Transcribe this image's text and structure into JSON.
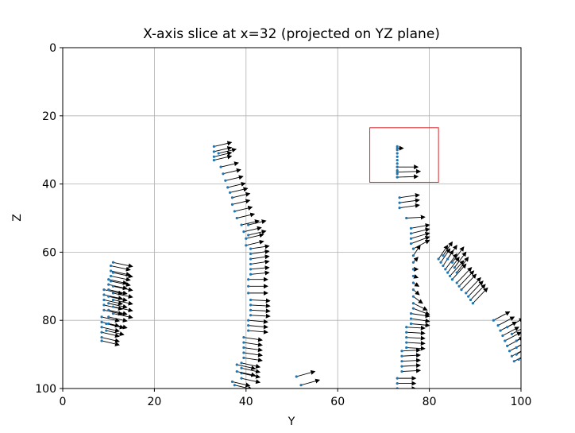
{
  "chart_data": {
    "type": "quiver",
    "title": "X-axis slice at x=32 (projected on YZ plane)",
    "xlabel": "Y",
    "ylabel": "Z",
    "xlim": [
      0,
      100
    ],
    "ylim": [
      100,
      0
    ],
    "y_axis_inverted": true,
    "xticks": [
      0,
      20,
      40,
      60,
      80,
      100
    ],
    "yticks": [
      0,
      20,
      40,
      60,
      80,
      100
    ],
    "grid": true,
    "point_color": "#1f77b4",
    "arrow_color": "#000000",
    "highlight_box": {
      "y_range": [
        67,
        82
      ],
      "z_range": [
        23.5,
        39.5
      ],
      "color": "#d62728"
    },
    "series": [
      {
        "name": "",
        "points": [
          [
            8.5,
            79,
            3.8,
            1.2
          ],
          [
            8.5,
            80.5,
            3.8,
            1.2
          ],
          [
            8.5,
            82,
            3.8,
            1.2
          ],
          [
            8.5,
            83.5,
            3.8,
            1.2
          ],
          [
            8.5,
            85,
            3.8,
            1.2
          ],
          [
            8.5,
            86,
            3.8,
            1.2
          ],
          [
            9.5,
            81,
            3.8,
            1.2
          ],
          [
            9.5,
            83,
            3.8,
            1.2
          ],
          [
            9,
            71,
            4,
            1.2
          ],
          [
            9,
            72.5,
            4,
            1.2
          ],
          [
            9,
            74,
            4,
            1.2
          ],
          [
            9,
            75.5,
            4,
            1.2
          ],
          [
            9,
            77,
            4,
            1.2
          ],
          [
            10,
            71,
            4,
            1.2
          ],
          [
            10,
            73,
            4,
            1.2
          ],
          [
            10,
            75,
            4,
            1.2
          ],
          [
            10,
            77,
            4,
            1.2
          ],
          [
            10,
            79,
            4,
            1.2
          ],
          [
            10,
            81,
            4,
            1.2
          ],
          [
            10,
            68,
            4,
            1.2
          ],
          [
            10,
            69.5,
            4,
            1.2
          ],
          [
            10.5,
            64,
            4.2,
            1.2
          ],
          [
            10.5,
            65.5,
            4.2,
            1.2
          ],
          [
            10.5,
            67,
            4.2,
            1.2
          ],
          [
            10.5,
            68.5,
            4.2,
            1.2
          ],
          [
            11,
            63,
            4.2,
            1.2
          ],
          [
            11,
            66,
            4.2,
            1.2
          ],
          [
            11,
            70,
            4.2,
            1.2
          ],
          [
            11,
            72,
            4.2,
            1.2
          ],
          [
            11,
            74,
            4.2,
            1.2
          ],
          [
            11,
            76,
            4.2,
            1.2
          ],
          [
            11,
            78,
            4.2,
            1.2
          ],
          [
            33,
            29,
            3.8,
            -1.2
          ],
          [
            33,
            30.5,
            3.8,
            -1.2
          ],
          [
            33,
            32,
            3.8,
            -1.2
          ],
          [
            33,
            33,
            3.8,
            -1.2
          ],
          [
            34,
            31,
            3.8,
            -1.2
          ],
          [
            34.5,
            35,
            3.8,
            -1.2
          ],
          [
            35,
            37,
            3.8,
            -1.2
          ],
          [
            35.5,
            39,
            3.8,
            -1.2
          ],
          [
            36,
            41,
            3.8,
            -1.2
          ],
          [
            36.5,
            42.5,
            3.8,
            -1.2
          ],
          [
            37,
            44,
            3.8,
            -1.2
          ],
          [
            37,
            46,
            3.8,
            -1.2
          ],
          [
            37.5,
            48,
            3.8,
            -1.2
          ],
          [
            38,
            50,
            3.8,
            -1.2
          ],
          [
            39,
            52,
            3.8,
            -1.2
          ],
          [
            39.5,
            54,
            3.8,
            -1.2
          ],
          [
            40,
            56,
            3.8,
            -1.2
          ],
          [
            40,
            58,
            3.8,
            -1.2
          ],
          [
            40.5,
            52,
            3.8,
            -1.2
          ],
          [
            40.5,
            55,
            3.8,
            -1.2
          ],
          [
            41,
            59,
            4,
            -0.8
          ],
          [
            41,
            60.5,
            4,
            -0.8
          ],
          [
            41,
            62,
            4,
            -0.8
          ],
          [
            41,
            63.5,
            4,
            -0.8
          ],
          [
            41,
            65,
            4,
            -0.5
          ],
          [
            41,
            66.5,
            4,
            -0.5
          ],
          [
            40.5,
            68,
            4.2,
            0
          ],
          [
            40.5,
            70,
            4.2,
            0
          ],
          [
            40.5,
            72,
            4.2,
            0
          ],
          [
            41,
            74,
            4.2,
            0.3
          ],
          [
            41,
            75.5,
            4.2,
            0.3
          ],
          [
            41,
            77,
            4.2,
            0.3
          ],
          [
            41,
            78.5,
            4.2,
            0.3
          ],
          [
            40.5,
            80,
            4.2,
            0.5
          ],
          [
            40.5,
            81.5,
            4.2,
            0.5
          ],
          [
            40.5,
            83,
            4.2,
            0.5
          ],
          [
            39.5,
            85,
            4,
            0.8
          ],
          [
            39.5,
            86.5,
            4,
            0.8
          ],
          [
            39.5,
            88,
            4,
            0.8
          ],
          [
            39.5,
            89.5,
            4,
            0.8
          ],
          [
            39.5,
            91,
            4,
            0.8
          ],
          [
            39,
            92.5,
            4,
            1.2
          ],
          [
            39,
            94,
            4,
            1.2
          ],
          [
            39,
            95.5,
            4,
            1.2
          ],
          [
            39,
            97,
            4,
            1.2
          ],
          [
            38,
            93,
            4,
            1.2
          ],
          [
            38,
            95,
            4,
            1.2
          ],
          [
            37,
            98,
            3.8,
            1.2
          ],
          [
            37.5,
            99,
            3.8,
            1.2
          ],
          [
            51,
            96.5,
            4,
            -1.5
          ],
          [
            52,
            99,
            4,
            -1.5
          ],
          [
            73,
            29,
            0,
            0
          ],
          [
            73,
            30,
            0,
            0
          ],
          [
            73,
            31,
            0,
            0
          ],
          [
            73,
            32,
            0,
            0
          ],
          [
            73,
            33,
            0,
            0
          ],
          [
            73,
            34,
            0,
            0
          ],
          [
            73,
            35,
            0,
            0
          ],
          [
            73,
            36,
            0,
            0
          ],
          [
            73,
            37,
            0,
            0
          ],
          [
            73,
            38,
            0,
            0
          ],
          [
            73,
            29.5,
            1.3,
            0
          ],
          [
            73,
            35,
            4.5,
            0
          ],
          [
            73,
            36.5,
            5,
            -0.2
          ],
          [
            73,
            38,
            4.5,
            -0.2
          ],
          [
            73.5,
            44,
            4.3,
            -0.8
          ],
          [
            73.5,
            45.5,
            4.3,
            -0.8
          ],
          [
            73.5,
            47,
            4.3,
            -0.8
          ],
          [
            75,
            50,
            4,
            -0.3
          ],
          [
            76,
            53,
            4,
            -1
          ],
          [
            76,
            54.5,
            4,
            -1.3
          ],
          [
            76,
            56,
            4,
            -1.6
          ],
          [
            76,
            57.5,
            4,
            -2
          ],
          [
            76.5,
            59,
            3.5,
            -2.5
          ],
          [
            76.5,
            61,
            1.5,
            -3
          ],
          [
            76.5,
            63,
            1,
            -1.5
          ],
          [
            76.5,
            65,
            1,
            0
          ],
          [
            76.5,
            67,
            1,
            0.5
          ],
          [
            76.5,
            69,
            1.2,
            1
          ],
          [
            76.5,
            71,
            1.3,
            1.5
          ],
          [
            76.5,
            73,
            2,
            2
          ],
          [
            76.5,
            75,
            3,
            2
          ],
          [
            76.5,
            76.5,
            3.5,
            1.8
          ],
          [
            76,
            78,
            4,
            0.8
          ],
          [
            76,
            79.5,
            4,
            0.8
          ],
          [
            76,
            81,
            4,
            0.5
          ],
          [
            75,
            82,
            4,
            0.3
          ],
          [
            75,
            83.5,
            4,
            0.3
          ],
          [
            75,
            85,
            4,
            0.3
          ],
          [
            75,
            86.5,
            4,
            0.3
          ],
          [
            75,
            88,
            4,
            0.3
          ],
          [
            74,
            89,
            4,
            -0.3
          ],
          [
            74,
            90.5,
            4,
            -0.3
          ],
          [
            74,
            92,
            4,
            -0.3
          ],
          [
            74,
            93.5,
            4,
            -0.3
          ],
          [
            74,
            95,
            4,
            -0.3
          ],
          [
            73,
            97,
            4,
            0
          ],
          [
            73,
            98.5,
            4,
            0
          ],
          [
            73,
            100,
            4,
            0
          ],
          [
            82,
            62,
            2,
            -4
          ],
          [
            82.5,
            63,
            2,
            -4
          ],
          [
            83,
            64,
            2.2,
            -4.5
          ],
          [
            83.5,
            65,
            2.5,
            -4.5
          ],
          [
            84,
            66,
            2.5,
            -4.5
          ],
          [
            84.5,
            67,
            3,
            -4.5
          ],
          [
            85,
            68,
            3,
            -4.5
          ],
          [
            86,
            69,
            3.2,
            -4.5
          ],
          [
            86.5,
            70,
            3.2,
            -4.5
          ],
          [
            87,
            71,
            3.2,
            -4.5
          ],
          [
            88,
            72,
            3.2,
            -4.5
          ],
          [
            88.5,
            73,
            3.2,
            -4.5
          ],
          [
            89,
            74,
            3.2,
            -4.5
          ],
          [
            89.5,
            75,
            3.2,
            -4.5
          ],
          [
            83,
            61,
            2,
            -4
          ],
          [
            84,
            62,
            2,
            -4
          ],
          [
            85,
            63,
            2.5,
            -4.5
          ],
          [
            85.5,
            64.5,
            2.5,
            -4.5
          ],
          [
            86,
            66,
            2.5,
            -4.5
          ],
          [
            94,
            80,
            3.5,
            -2.5
          ],
          [
            95,
            81.5,
            3.5,
            -2.5
          ],
          [
            95.5,
            83,
            3.5,
            -2.5
          ],
          [
            96,
            84.5,
            3.5,
            -2.5
          ],
          [
            96.5,
            86,
            3.5,
            -2.5
          ],
          [
            97,
            87.5,
            3.5,
            -2.5
          ],
          [
            97.5,
            89,
            3.5,
            -2.5
          ],
          [
            98,
            90.5,
            3.5,
            -2.5
          ],
          [
            98.5,
            92,
            3.5,
            -2.5
          ],
          [
            97,
            82,
            3.5,
            -2.5
          ],
          [
            98,
            84,
            3.5,
            -2.5
          ],
          [
            99,
            86,
            3,
            -2.5
          ],
          [
            99,
            88,
            3,
            -2.5
          ],
          [
            99,
            90,
            3,
            -2.5
          ],
          [
            99.5,
            91.5,
            3,
            -2.5
          ]
        ]
      }
    ]
  }
}
